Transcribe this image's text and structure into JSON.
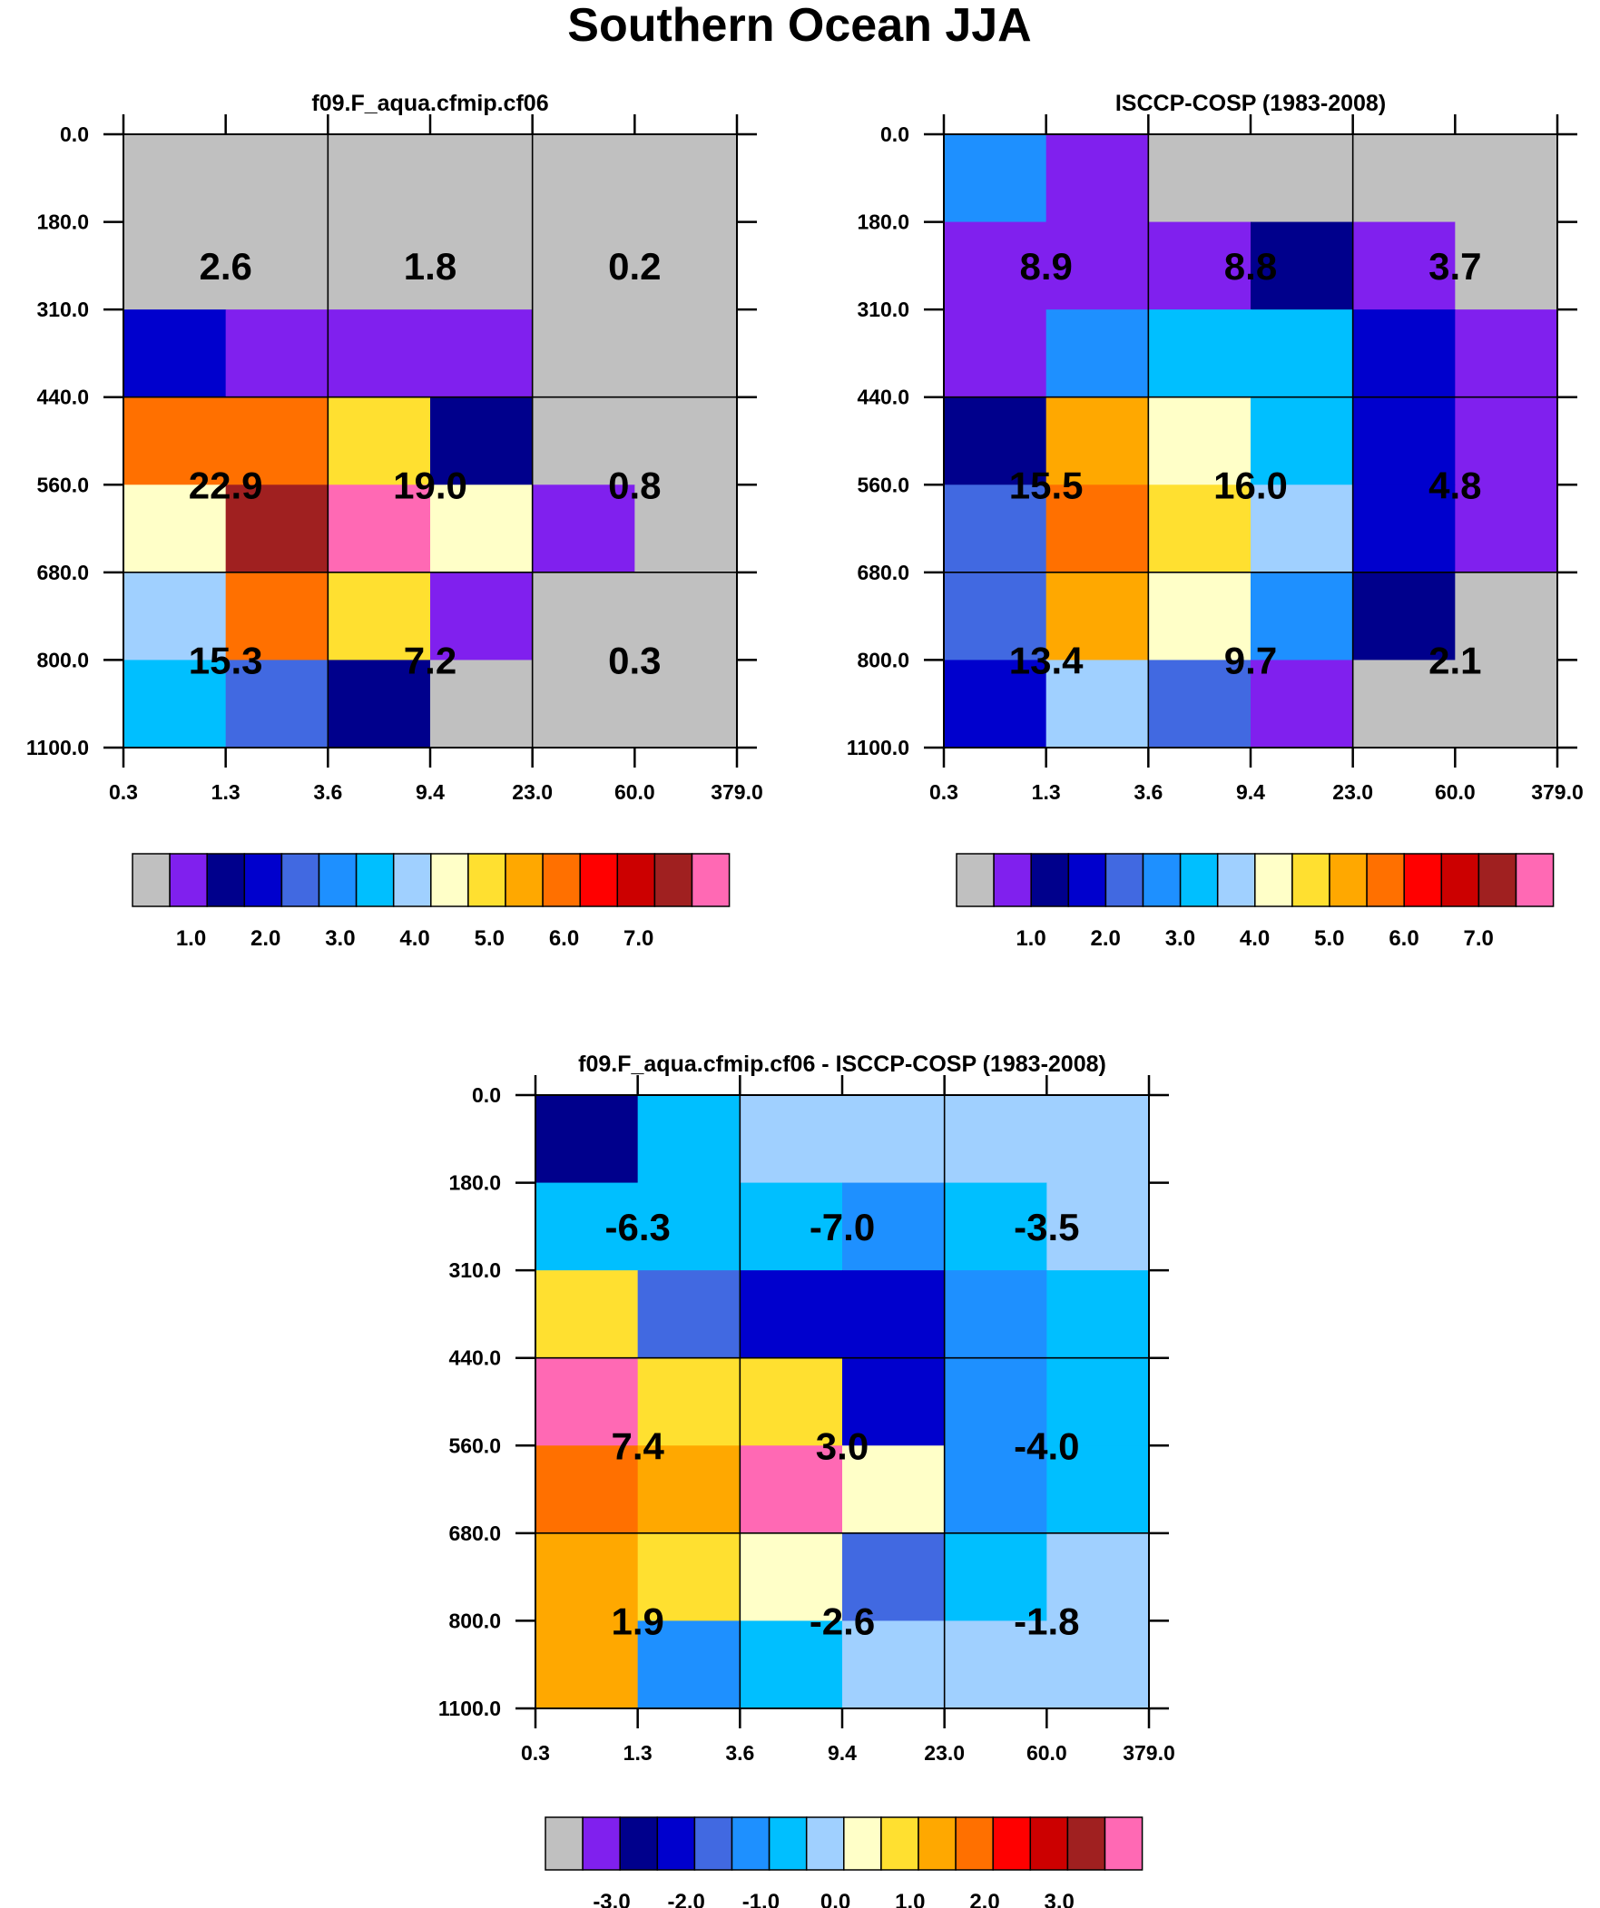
{
  "title": "Southern Ocean JJA",
  "colors": [
    "#c0c0c0",
    "#8020ee",
    "#00008c",
    "#0000cd",
    "#4169e1",
    "#1e90ff",
    "#00bfff",
    "#a0d0ff",
    "#ffffc8",
    "#ffe030",
    "#ffa800",
    "#ff7000",
    "#ff0000",
    "#cc0000",
    "#a02020",
    "#ff69b4"
  ],
  "chart_data": [
    {
      "type": "heatmap",
      "title": "f09.F_aqua.cfmip.cf06",
      "x_ticks": [
        "0.3",
        "1.3",
        "3.6",
        "9.4",
        "23.0",
        "60.0",
        "379.0"
      ],
      "y_ticks": [
        "0.0",
        "180.0",
        "310.0",
        "440.0",
        "560.0",
        "680.0",
        "800.0",
        "1100.0"
      ],
      "cells": [
        [
          0,
          0,
          0,
          0,
          0,
          0
        ],
        [
          0,
          0,
          0,
          0,
          0,
          0
        ],
        [
          3,
          1,
          1,
          1,
          0,
          0
        ],
        [
          11,
          11,
          9,
          2,
          0,
          0
        ],
        [
          8,
          14,
          15,
          8,
          1,
          0
        ],
        [
          7,
          11,
          9,
          1,
          0,
          0
        ],
        [
          6,
          4,
          2,
          0,
          0,
          0
        ]
      ],
      "box_values": [
        [
          "2.6",
          "1.8",
          "0.2"
        ],
        [
          "22.9",
          "19.0",
          "0.8"
        ],
        [
          "15.3",
          "7.2",
          "0.3"
        ]
      ],
      "colorbar_labels": [
        "1.0",
        "2.0",
        "3.0",
        "4.0",
        "5.0",
        "6.0",
        "7.0"
      ]
    },
    {
      "type": "heatmap",
      "title": "ISCCP-COSP (1983-2008)",
      "x_ticks": [
        "0.3",
        "1.3",
        "3.6",
        "9.4",
        "23.0",
        "60.0",
        "379.0"
      ],
      "y_ticks": [
        "0.0",
        "180.0",
        "310.0",
        "440.0",
        "560.0",
        "680.0",
        "800.0",
        "1100.0"
      ],
      "cells": [
        [
          5,
          1,
          0,
          0,
          0,
          0
        ],
        [
          1,
          1,
          1,
          2,
          1,
          0
        ],
        [
          1,
          5,
          6,
          6,
          3,
          1
        ],
        [
          2,
          10,
          8,
          6,
          3,
          1
        ],
        [
          4,
          11,
          9,
          7,
          3,
          1
        ],
        [
          4,
          10,
          8,
          5,
          2,
          0
        ],
        [
          3,
          7,
          4,
          1,
          0,
          0
        ]
      ],
      "box_values": [
        [
          "8.9",
          "8.8",
          "3.7"
        ],
        [
          "15.5",
          "16.0",
          "4.8"
        ],
        [
          "13.4",
          "9.7",
          "2.1"
        ]
      ],
      "colorbar_labels": [
        "1.0",
        "2.0",
        "3.0",
        "4.0",
        "5.0",
        "6.0",
        "7.0"
      ]
    },
    {
      "type": "heatmap",
      "title": "f09.F_aqua.cfmip.cf06 - ISCCP-COSP (1983-2008)",
      "x_ticks": [
        "0.3",
        "1.3",
        "3.6",
        "9.4",
        "23.0",
        "60.0",
        "379.0"
      ],
      "y_ticks": [
        "0.0",
        "180.0",
        "310.0",
        "440.0",
        "560.0",
        "680.0",
        "800.0",
        "1100.0"
      ],
      "cells": [
        [
          2,
          6,
          7,
          7,
          7,
          7
        ],
        [
          6,
          6,
          6,
          5,
          6,
          7
        ],
        [
          9,
          4,
          3,
          3,
          5,
          6
        ],
        [
          15,
          9,
          9,
          3,
          5,
          6
        ],
        [
          11,
          10,
          15,
          8,
          5,
          6
        ],
        [
          10,
          9,
          8,
          4,
          6,
          7
        ],
        [
          10,
          5,
          6,
          7,
          7,
          7
        ]
      ],
      "box_values": [
        [
          "-6.3",
          "-7.0",
          "-3.5"
        ],
        [
          "7.4",
          "3.0",
          "-4.0"
        ],
        [
          "1.9",
          "-2.6",
          "-1.8"
        ]
      ],
      "colorbar_labels": [
        "-3.0",
        "-2.0",
        "-1.0",
        "0.0",
        "1.0",
        "2.0",
        "3.0"
      ]
    }
  ]
}
